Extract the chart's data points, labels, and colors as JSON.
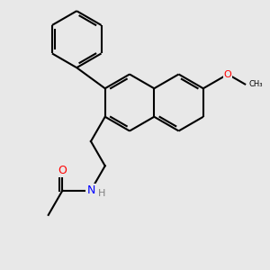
{
  "background_color": "#e8e8e8",
  "bond_color": "#000000",
  "bond_width": 1.5,
  "atom_colors": {
    "O": "#ff0000",
    "N": "#0000ff",
    "H": "#808080",
    "C": "#000000"
  }
}
